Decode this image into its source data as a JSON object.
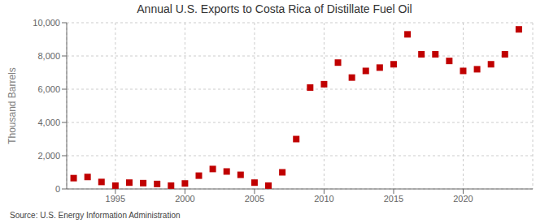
{
  "chart_data": {
    "type": "scatter",
    "title": "Annual U.S. Exports to Costa Rica of Distillate Fuel Oil",
    "ylabel": "Thousand Barrels",
    "annotation": "Source: U.S. Energy Information Administration",
    "x": [
      1992,
      1993,
      1994,
      1995,
      1996,
      1997,
      1998,
      1999,
      2000,
      2001,
      2002,
      2003,
      2004,
      2005,
      2006,
      2007,
      2008,
      2009,
      2010,
      2011,
      2012,
      2013,
      2014,
      2015,
      2016,
      2017,
      2018,
      2019,
      2020,
      2021,
      2022,
      2023,
      2024
    ],
    "values": [
      650,
      720,
      420,
      200,
      380,
      350,
      300,
      200,
      330,
      800,
      1200,
      1050,
      850,
      380,
      200,
      1000,
      3000,
      6100,
      6300,
      7600,
      6700,
      7100,
      7300,
      7500,
      9300,
      8100,
      8100,
      7700,
      7100,
      7200,
      7500,
      8100,
      9600
    ],
    "color": "#c00000",
    "marker": "square",
    "xlim": [
      1991.5,
      2025
    ],
    "xticks": [
      1995,
      2000,
      2005,
      2010,
      2015,
      2020
    ],
    "ylim": [
      0,
      10000
    ],
    "yticks": [
      0,
      {
        "value": 2000,
        "label": "2,000"
      },
      {
        "value": 4000,
        "label": "4,000"
      },
      {
        "value": 6000,
        "label": "6,000"
      },
      {
        "value": 8000,
        "label": "8,000"
      },
      {
        "value": 10000,
        "label": "10,000"
      }
    ],
    "grid": true
  }
}
